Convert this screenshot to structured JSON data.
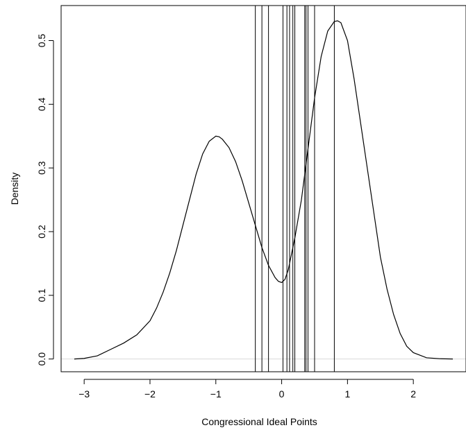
{
  "chart_data": {
    "type": "line",
    "title": "",
    "xlabel": "Congressional Ideal Points",
    "ylabel": "Density",
    "xlim": [
      -3.35,
      2.8
    ],
    "ylim": [
      -0.02,
      0.555
    ],
    "x_ticks": [
      -3,
      -2,
      -1,
      0,
      1,
      2
    ],
    "x_tick_labels": [
      "−3",
      "−2",
      "−1",
      "0",
      "1",
      "2"
    ],
    "y_ticks": [
      0.0,
      0.1,
      0.2,
      0.3,
      0.4,
      0.5
    ],
    "y_tick_labels": [
      "0.0",
      "0.1",
      "0.2",
      "0.3",
      "0.4",
      "0.5"
    ],
    "grid": false,
    "legend": "none",
    "series": [
      {
        "x": [
          -3.15,
          -3.0,
          -2.8,
          -2.6,
          -2.4,
          -2.2,
          -2.0,
          -1.9,
          -1.8,
          -1.7,
          -1.6,
          -1.5,
          -1.4,
          -1.3,
          -1.2,
          -1.1,
          -1.0,
          -0.95,
          -0.9,
          -0.8,
          -0.7,
          -0.6,
          -0.5,
          -0.4,
          -0.3,
          -0.2,
          -0.1,
          -0.05,
          0.0,
          0.05,
          0.1,
          0.2,
          0.3,
          0.4,
          0.5,
          0.6,
          0.7,
          0.8,
          0.85,
          0.9,
          1.0,
          1.1,
          1.2,
          1.3,
          1.4,
          1.5,
          1.6,
          1.7,
          1.8,
          1.9,
          2.0,
          2.2,
          2.4,
          2.6
        ],
        "y": [
          0.0,
          0.001,
          0.005,
          0.015,
          0.025,
          0.038,
          0.06,
          0.08,
          0.105,
          0.135,
          0.17,
          0.21,
          0.25,
          0.29,
          0.322,
          0.342,
          0.35,
          0.349,
          0.345,
          0.332,
          0.31,
          0.28,
          0.245,
          0.21,
          0.175,
          0.147,
          0.128,
          0.122,
          0.12,
          0.125,
          0.14,
          0.19,
          0.25,
          0.33,
          0.41,
          0.475,
          0.515,
          0.53,
          0.531,
          0.528,
          0.5,
          0.44,
          0.37,
          0.3,
          0.23,
          0.16,
          0.11,
          0.07,
          0.04,
          0.02,
          0.01,
          0.002,
          0.0005,
          0.0
        ]
      }
    ],
    "reference_lines": [
      -0.4,
      -0.3,
      -0.2,
      0.02,
      0.08,
      0.12,
      0.17,
      0.2,
      0.35,
      0.37,
      0.4,
      0.5,
      0.8
    ],
    "baseline": 0
  }
}
